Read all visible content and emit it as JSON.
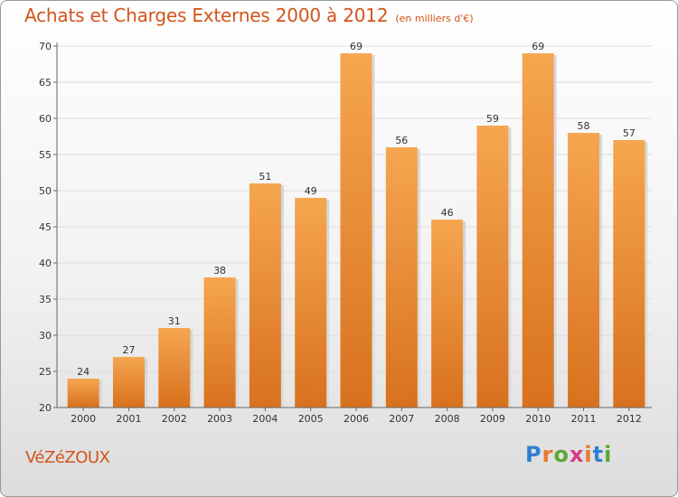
{
  "chart_data": {
    "type": "bar",
    "title": "Achats et Charges Externes 2000 à 2012",
    "subtitle": "(en milliers d'€)",
    "categories": [
      "2000",
      "2001",
      "2002",
      "2003",
      "2004",
      "2005",
      "2006",
      "2007",
      "2008",
      "2009",
      "2010",
      "2011",
      "2012"
    ],
    "values": [
      24,
      27,
      31,
      38,
      51,
      49,
      69,
      56,
      46,
      59,
      69,
      58,
      57
    ],
    "ylim": [
      20,
      70
    ],
    "yticks": [
      20,
      25,
      30,
      35,
      40,
      45,
      50,
      55,
      60,
      65,
      70
    ],
    "xlabel": "",
    "ylabel": "",
    "grid": true
  },
  "place_name": "VéZéZOUX",
  "logo": {
    "text": "Proxiti",
    "letters": [
      {
        "char": "P",
        "color": "#2f7fd1"
      },
      {
        "char": "r",
        "color": "#e8792b"
      },
      {
        "char": "o",
        "color": "#5aa832"
      },
      {
        "char": "x",
        "color": "#d63a86"
      },
      {
        "char": "i",
        "color": "#e8792b"
      },
      {
        "char": "t",
        "color": "#2f7fd1"
      },
      {
        "char": "i",
        "color": "#5aa832"
      }
    ]
  },
  "colors": {
    "title": "#d2541a",
    "bar_light": "#f6a650",
    "bar_dark": "#d8711e",
    "grid": "#dddddd",
    "axis": "#666666"
  }
}
